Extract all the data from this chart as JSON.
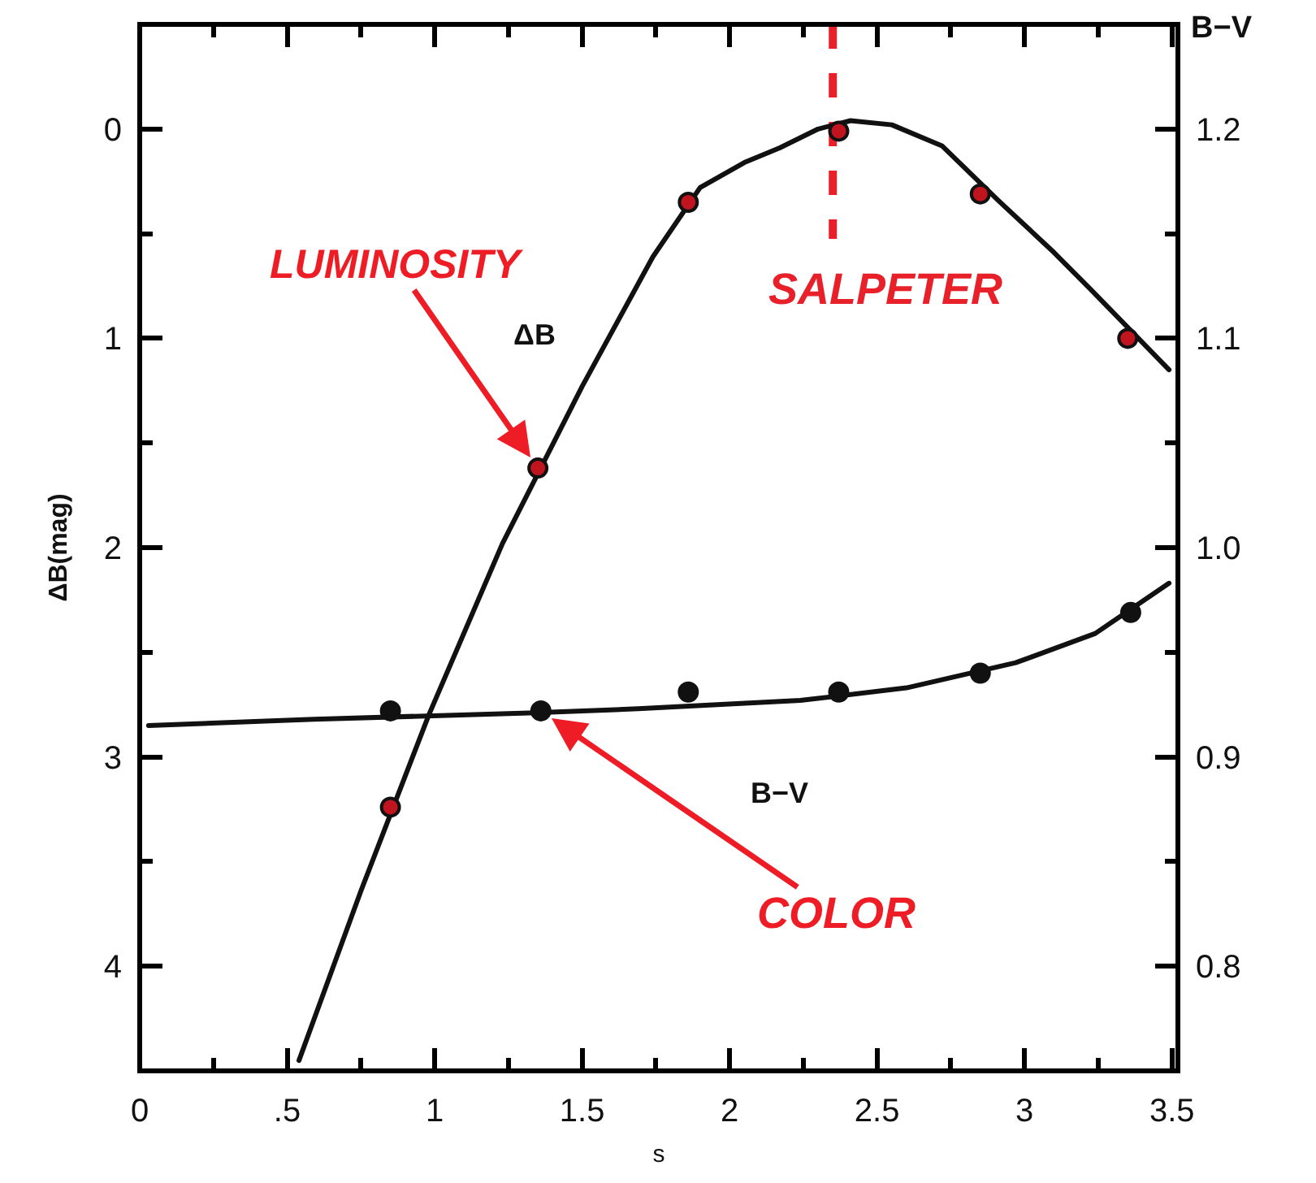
{
  "chart_data": {
    "type": "line",
    "xlabel": "s",
    "ylabel": "ΔB(mag)",
    "y2label": "B−V",
    "xlim": [
      0,
      3.52
    ],
    "xticks": [
      0,
      {
        "value": 0.25,
        "label": null
      },
      {
        "value": 0.5,
        "label": ".5"
      },
      {
        "value": 0.75,
        "label": null
      },
      1,
      {
        "value": 1.25,
        "label": null
      },
      1.5,
      {
        "value": 1.75,
        "label": null
      },
      2,
      {
        "value": 2.25,
        "label": null
      },
      2.5,
      {
        "value": 2.75,
        "label": null
      },
      3,
      {
        "value": 3.25,
        "label": null
      },
      3.5
    ],
    "ylim": [
      4.5,
      -0.5
    ],
    "yticks": [
      0,
      {
        "value": 0.5,
        "label": null
      },
      1,
      {
        "value": 1.5,
        "label": null
      },
      2,
      {
        "value": 2.5,
        "label": null
      },
      3,
      {
        "value": 3.5,
        "label": null
      },
      4
    ],
    "y2lim": [
      0.75,
      1.25
    ],
    "y2ticks": [
      0.8,
      {
        "value": 0.85,
        "label": null
      },
      0.9,
      {
        "value": 0.95,
        "label": null
      },
      {
        "value": 1,
        "label": "1.0"
      },
      {
        "value": 1.05,
        "label": null
      },
      1.1,
      {
        "value": 1.15,
        "label": null
      },
      1.2
    ],
    "series": [
      {
        "color": "#111111",
        "x": [
          0.54,
          0.75,
          0.98,
          1.23,
          1.5,
          1.74,
          1.9,
          2.05,
          2.17,
          2.3,
          2.41,
          2.55,
          2.72,
          2.91,
          3.1,
          3.22,
          3.49
        ],
        "values": [
          4.45,
          3.64,
          2.8,
          1.98,
          1.23,
          0.61,
          0.28,
          0.16,
          0.09,
          0.0,
          -0.04,
          -0.02,
          0.08,
          0.34,
          0.59,
          0.76,
          1.15
        ]
      },
      {
        "type": "scatter",
        "marker": "circle",
        "color": "#c0141f",
        "x": [
          0.85,
          1.35,
          1.86,
          2.37,
          2.85,
          3.35
        ],
        "values": [
          3.24,
          1.62,
          0.35,
          0.01,
          0.31,
          1.0
        ]
      },
      {
        "axis": "y2",
        "color": "#111111",
        "x": [
          0.03,
          0.59,
          1.32,
          1.69,
          2.24,
          2.6,
          2.97,
          3.24,
          3.49
        ],
        "values": [
          0.915,
          0.918,
          0.921,
          0.923,
          0.927,
          0.933,
          0.945,
          0.959,
          0.983
        ]
      },
      {
        "type": "scatter",
        "axis": "y2",
        "marker": "circle",
        "color": "#111111",
        "x": [
          0.85,
          1.36,
          1.86,
          2.37,
          2.85,
          3.36
        ],
        "values": [
          0.922,
          0.922,
          0.931,
          0.931,
          0.94,
          0.969
        ]
      }
    ],
    "ref_lines": [
      {
        "axis": "x",
        "value": 2.35,
        "label": "SALPETER",
        "color": "#e8202a",
        "line_style": "dashed"
      }
    ],
    "annotations": [
      "ΔB",
      "B−V",
      {
        "text": "LUMINOSITY",
        "x": 1.35,
        "y": 1.62
      },
      {
        "text": "COLOR",
        "x": 1.36,
        "y": 2.78
      }
    ]
  }
}
